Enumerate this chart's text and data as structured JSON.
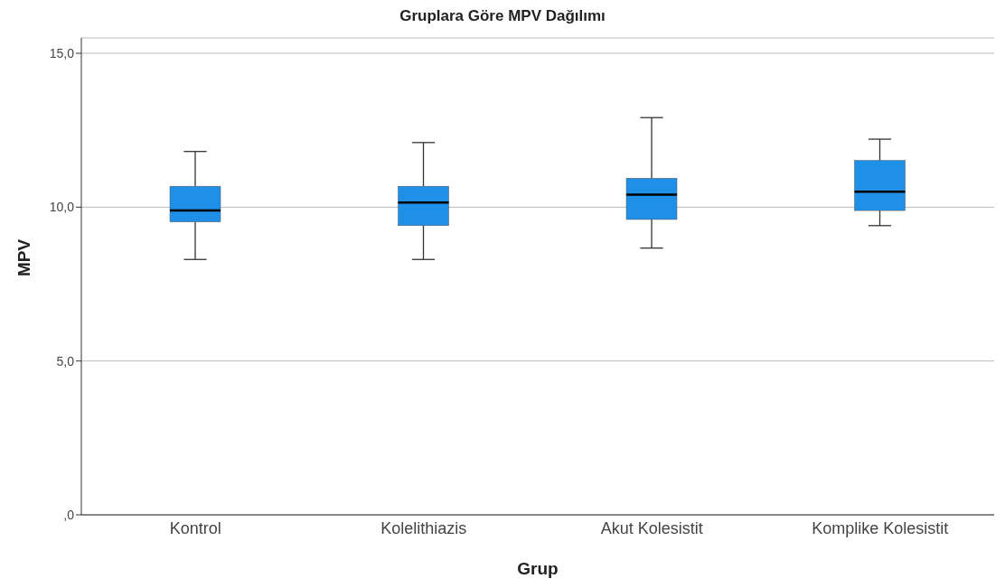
{
  "chart_data": {
    "type": "box",
    "title": "Gruplara Göre MPV Dağılımı",
    "xlabel": "Grup",
    "ylabel": "MPV",
    "categories": [
      "Kontrol",
      "Kolelithiazis",
      "Akut Kolesistit",
      "Komplike Kolesistit"
    ],
    "boxes": [
      {
        "low": 8.3,
        "q1": 9.52,
        "median": 9.89,
        "q3": 10.68,
        "high": 11.81
      },
      {
        "low": 8.3,
        "q1": 9.4,
        "median": 10.15,
        "q3": 10.68,
        "high": 12.1
      },
      {
        "low": 8.67,
        "q1": 9.6,
        "median": 10.41,
        "q3": 10.94,
        "high": 12.91
      },
      {
        "low": 9.4,
        "q1": 9.89,
        "median": 10.5,
        "q3": 11.52,
        "high": 12.21
      }
    ],
    "color": "#1e90e8",
    "ylim": [
      0,
      15.5
    ],
    "yticks": [
      {
        "value": 0,
        "label": ",0"
      },
      {
        "value": 5,
        "label": "5,0"
      },
      {
        "value": 10,
        "label": "10,0"
      },
      {
        "value": 15,
        "label": "15,0"
      }
    ],
    "grid": "y"
  }
}
